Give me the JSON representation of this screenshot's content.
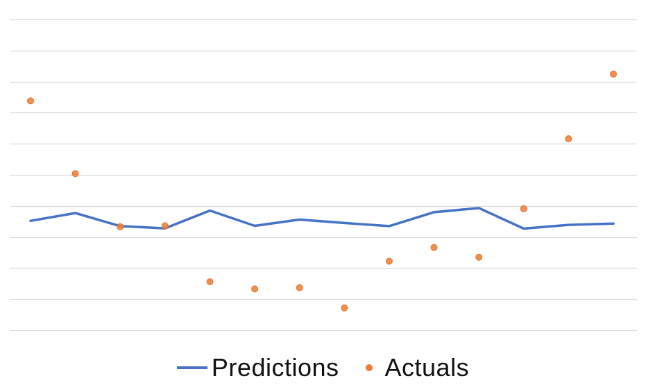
{
  "chart_data": {
    "type": "line",
    "title": "",
    "xlabel": "",
    "ylabel": "",
    "grid": true,
    "ylim": [
      0,
      10
    ],
    "ytick_count": 10,
    "x": [
      1,
      2,
      3,
      4,
      5,
      6,
      7,
      8,
      9,
      10,
      11,
      12,
      13,
      14
    ],
    "series": [
      {
        "name": "Predictions",
        "kind": "line",
        "color": "#4472C4",
        "values": [
          3.52,
          3.77,
          3.35,
          3.28,
          3.85,
          3.36,
          3.56,
          3.45,
          3.35,
          3.8,
          3.93,
          3.27,
          3.39,
          3.43
        ]
      },
      {
        "name": "Actuals",
        "kind": "scatter",
        "color": "#ED7D31",
        "values": [
          7.38,
          5.04,
          3.33,
          3.36,
          1.56,
          1.33,
          1.37,
          0.72,
          2.22,
          2.66,
          2.35,
          3.91,
          6.16,
          8.24
        ]
      }
    ],
    "legend": {
      "position": "bottom",
      "entries": [
        "Predictions",
        "Actuals"
      ]
    }
  }
}
